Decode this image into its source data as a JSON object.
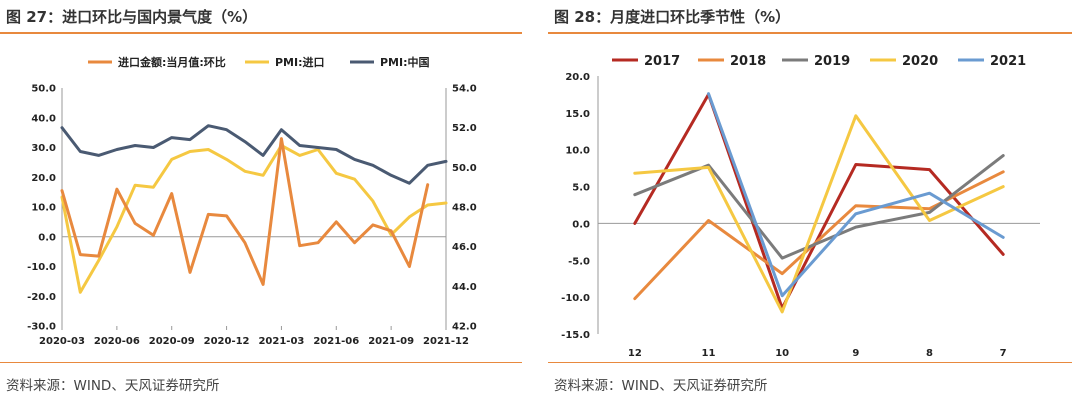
{
  "left": {
    "title": "图 27：进口环比与国内景气度（%）",
    "source": "资料来源：WIND、天风证券研究所",
    "chart_data": {
      "type": "line",
      "x": [
        "2020-03",
        "2020-04",
        "2020-05",
        "2020-06",
        "2020-07",
        "2020-08",
        "2020-09",
        "2020-10",
        "2020-11",
        "2020-12",
        "2021-01",
        "2021-02",
        "2021-03",
        "2021-04",
        "2021-05",
        "2021-06",
        "2021-07",
        "2021-08",
        "2021-09",
        "2021-10",
        "2021-11",
        "2021-12"
      ],
      "x_tick_labels": [
        "2020-03",
        "2020-06",
        "2020-09",
        "2020-12",
        "2021-03",
        "2021-06",
        "2021-09",
        "2021-12"
      ],
      "ylim_left": [
        -30,
        50
      ],
      "y_ticks_left": [
        "50.0",
        "40.0",
        "30.0",
        "20.0",
        "10.0",
        "0.0",
        "-10.0",
        "-20.0",
        "-30.0"
      ],
      "ylim_right": [
        42,
        54
      ],
      "y_ticks_right": [
        "54.0",
        "52.0",
        "50.0",
        "48.0",
        "46.0",
        "44.0",
        "42.0"
      ],
      "legend_position": "top",
      "series": [
        {
          "name": "进口金额:当月值:环比",
          "axis": "left",
          "color": "#e8893e",
          "values": [
            15.5,
            -6,
            -6.5,
            16,
            4.5,
            0.5,
            14.5,
            -12,
            7.5,
            7,
            -2,
            -16,
            33,
            -3,
            -2,
            5,
            -2,
            4,
            2,
            -10,
            17.5,
            null
          ]
        },
        {
          "name": "PMI:进口",
          "axis": "right",
          "color": "#f5c842",
          "values": [
            48.5,
            43.7,
            45.3,
            47.0,
            49.1,
            49.0,
            50.4,
            50.8,
            50.9,
            50.4,
            49.8,
            49.6,
            51.1,
            50.6,
            50.9,
            49.7,
            49.4,
            48.3,
            46.6,
            47.5,
            48.1,
            48.2
          ]
        },
        {
          "name": "PMI:中国",
          "axis": "right",
          "color": "#4a5a72",
          "values": [
            52.0,
            50.8,
            50.6,
            50.9,
            51.1,
            51.0,
            51.5,
            51.4,
            52.1,
            51.9,
            51.3,
            50.6,
            51.9,
            51.1,
            51.0,
            50.9,
            50.4,
            50.1,
            49.6,
            49.2,
            50.1,
            50.3
          ]
        }
      ]
    }
  },
  "right": {
    "title": "图 28：月度进口环比季节性（%）",
    "source": "资料来源：WIND、天风证券研究所",
    "chart_data": {
      "type": "line",
      "categories": [
        "12",
        "11",
        "10",
        "9",
        "8",
        "7"
      ],
      "ylim": [
        -15,
        20
      ],
      "y_ticks": [
        "20.0",
        "15.0",
        "10.0",
        "5.0",
        "0.0",
        "-5.0",
        "-10.0",
        "-15.0"
      ],
      "legend_position": "top",
      "series": [
        {
          "name": "2017",
          "color": "#b52a22",
          "values": [
            0.0,
            17.5,
            -11.5,
            8.0,
            7.3,
            -4.2
          ]
        },
        {
          "name": "2018",
          "color": "#e8893e",
          "values": [
            -10.2,
            0.4,
            -6.8,
            2.4,
            2.0,
            7.0
          ]
        },
        {
          "name": "2019",
          "color": "#7b7b7b",
          "values": [
            3.9,
            7.9,
            -4.7,
            -0.5,
            1.5,
            9.2
          ]
        },
        {
          "name": "2020",
          "color": "#f5c842",
          "values": [
            6.8,
            7.6,
            -12.0,
            14.6,
            0.4,
            5.0
          ]
        },
        {
          "name": "2021",
          "color": "#6a9bd1",
          "values": [
            null,
            17.6,
            -9.8,
            1.3,
            4.1,
            -1.9
          ]
        }
      ]
    }
  }
}
